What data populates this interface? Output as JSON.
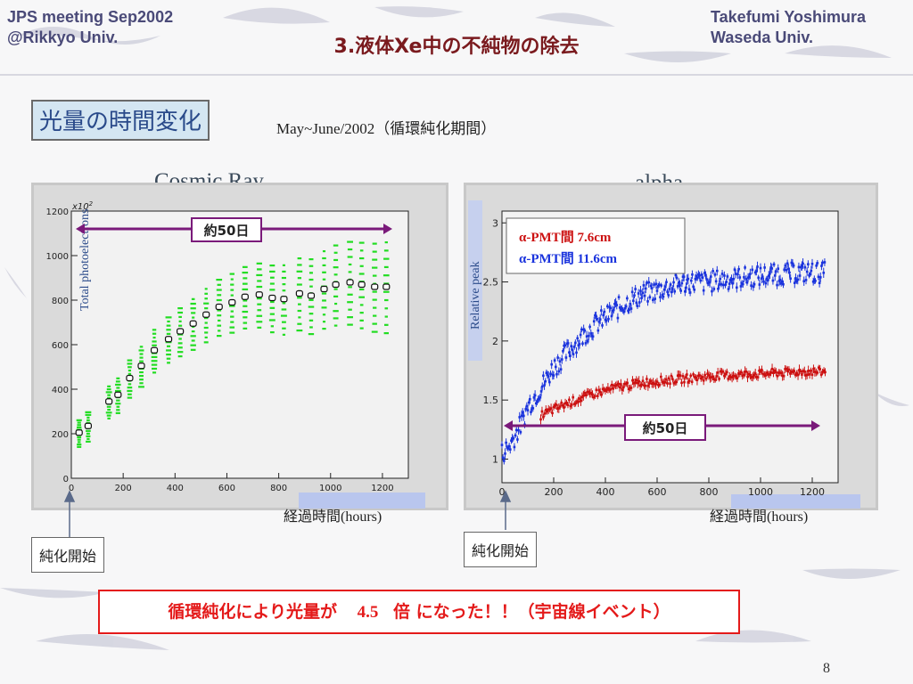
{
  "header": {
    "left_line1": "JPS meeting Sep2002",
    "left_line2": "@Rikkyo Univ.",
    "right_line1": "Takefumi Yoshimura",
    "right_line2": "Waseda Univ.",
    "title": "3.液体Xe中の不純物の除去"
  },
  "section_label": "光量の時間変化",
  "period": "May~June/2002（循環純化期間）",
  "left_plot": {
    "heading": "Cosmic Ray",
    "span_label": "約50日",
    "xaxis_caption": "経過時間(hours)",
    "callout": "純化開始"
  },
  "right_plot": {
    "heading": "alpha",
    "span_label": "約50日",
    "xaxis_caption": "経過時間(hours)",
    "callout": "純化開始",
    "legend1": "α-PMT間  7.6cm",
    "legend2": "α-PMT間  11.6cm"
  },
  "banner": {
    "prefix": "循環純化により光量が",
    "factor": "4.5",
    "suffix": "倍  になった！！（宇宙線イベント）"
  },
  "page_number": "8",
  "colors": {
    "green": "#22dd22",
    "blue": "#1a33dd",
    "red": "#cc1111",
    "purple": "#7a1a7a",
    "title": "#7a1a1e",
    "banner": "#e41a1a"
  },
  "chart_data": [
    {
      "type": "scatter",
      "title": "Cosmic Ray",
      "xlabel": "",
      "ylabel": "Total photoelectrons",
      "y_multiplier_label": "x10^2",
      "xlim": [
        0,
        1300
      ],
      "ylim": [
        0,
        1200
      ],
      "xticks": [
        0,
        200,
        400,
        600,
        800,
        1000,
        1200
      ],
      "yticks": [
        0,
        200,
        400,
        600,
        800,
        1000,
        1200
      ],
      "series": [
        {
          "x": [
            30,
            65,
            145,
            180,
            225,
            270,
            320,
            375,
            420,
            470,
            520,
            570,
            620,
            670,
            725,
            775,
            820,
            880,
            925,
            975,
            1020,
            1075,
            1120,
            1170,
            1215
          ],
          "y": [
            205,
            235,
            345,
            375,
            450,
            505,
            575,
            625,
            660,
            695,
            735,
            770,
            790,
            815,
            825,
            810,
            805,
            830,
            820,
            850,
            870,
            880,
            870,
            860,
            860
          ]
        }
      ]
    },
    {
      "type": "scatter",
      "title": "alpha",
      "xlabel": "",
      "ylabel": "Relative peak",
      "xlim": [
        0,
        1300
      ],
      "ylim": [
        0.8,
        3.1
      ],
      "xticks": [
        0,
        200,
        400,
        600,
        800,
        1000,
        1200
      ],
      "yticks": [
        1,
        1.5,
        2,
        2.5,
        3
      ],
      "series": [
        {
          "name": "α-PMT間  7.6cm",
          "x": [
            0,
            25,
            50,
            75,
            100,
            150,
            200,
            250,
            300,
            350,
            400,
            450,
            500,
            550,
            600,
            650,
            700,
            750,
            800,
            850,
            900,
            950,
            1000,
            1050,
            1100,
            1150,
            1200,
            1250
          ],
          "y": [
            1.05,
            1.1,
            1.2,
            1.3,
            1.45,
            1.6,
            1.78,
            1.9,
            2.02,
            2.12,
            2.2,
            2.28,
            2.35,
            2.4,
            2.43,
            2.46,
            2.49,
            2.5,
            2.5,
            2.52,
            2.53,
            2.54,
            2.55,
            2.56,
            2.57,
            2.58,
            2.58,
            2.58
          ]
        },
        {
          "name": "α-PMT間  11.6cm",
          "x": [
            150,
            200,
            250,
            300,
            350,
            400,
            450,
            500,
            550,
            600,
            650,
            700,
            750,
            800,
            850,
            900,
            950,
            1000,
            1050,
            1100,
            1150,
            1200,
            1250
          ],
          "y": [
            1.37,
            1.42,
            1.47,
            1.51,
            1.55,
            1.58,
            1.61,
            1.63,
            1.65,
            1.66,
            1.67,
            1.68,
            1.69,
            1.7,
            1.71,
            1.71,
            1.72,
            1.72,
            1.73,
            1.73,
            1.74,
            1.74,
            1.74
          ]
        }
      ]
    }
  ]
}
